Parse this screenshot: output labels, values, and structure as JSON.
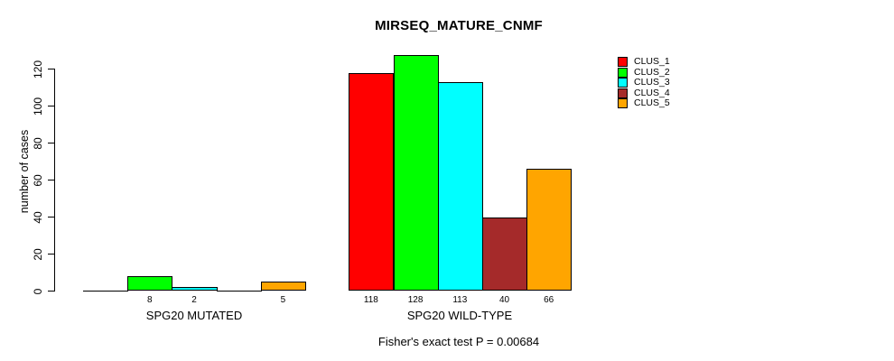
{
  "title": "MIRSEQ_MATURE_CNMF",
  "chart_data": {
    "type": "bar",
    "title": "MIRSEQ_MATURE_CNMF",
    "ylabel": "number of cases",
    "xlabel": "",
    "groups": [
      "SPG20 MUTATED",
      "SPG20 WILD-TYPE"
    ],
    "clusters": [
      "CLUS_1",
      "CLUS_2",
      "CLUS_3",
      "CLUS_4",
      "CLUS_5"
    ],
    "colors": [
      "#FF0000",
      "#00FF00",
      "#00FFFF",
      "#A52A2A",
      "#FFA500"
    ],
    "series": [
      {
        "name": "SPG20 MUTATED",
        "values": [
          0,
          8,
          2,
          0,
          5
        ]
      },
      {
        "name": "SPG20 WILD-TYPE",
        "values": [
          118,
          128,
          113,
          40,
          66
        ]
      }
    ],
    "yticks": [
      0,
      20,
      40,
      60,
      80,
      100,
      120
    ],
    "ylim": [
      0,
      128
    ],
    "grid": false,
    "legend_position": "topright",
    "annotation": "Fisher's exact test P = 0.00684",
    "bar_value_labels_shown": [
      "8",
      "2",
      "5",
      "118",
      "128",
      "113",
      "40",
      "66"
    ]
  }
}
